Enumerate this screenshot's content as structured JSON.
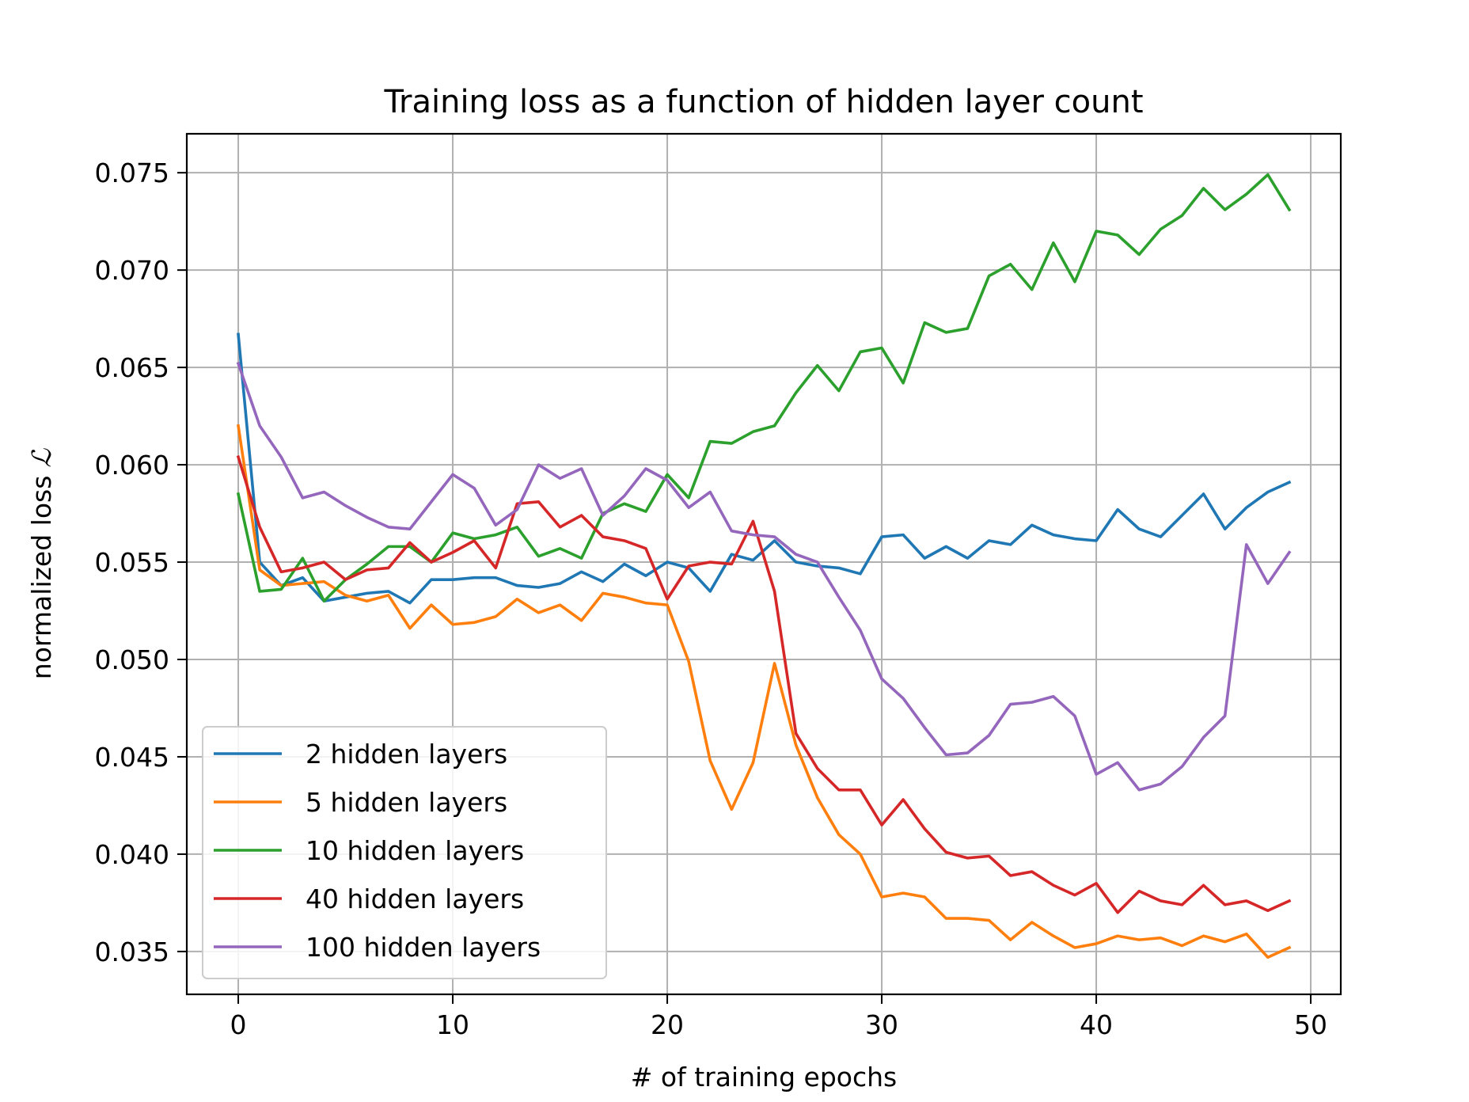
{
  "chart_data": {
    "type": "line",
    "title": "Training loss as a function of hidden layer count",
    "xlabel": "# of training epochs",
    "ylabel": "normalized loss",
    "ylabel_symbol": "ℒ",
    "xlim": [
      -2.4,
      51.4
    ],
    "ylim": [
      0.0328,
      0.077
    ],
    "xticks": [
      0,
      10,
      20,
      30,
      40,
      50
    ],
    "xtick_labels": [
      "0",
      "10",
      "20",
      "30",
      "40",
      "50"
    ],
    "yticks": [
      0.035,
      0.04,
      0.045,
      0.05,
      0.055,
      0.06,
      0.065,
      0.07,
      0.075
    ],
    "ytick_labels": [
      "0.035",
      "0.040",
      "0.045",
      "0.050",
      "0.055",
      "0.060",
      "0.065",
      "0.070",
      "0.075"
    ],
    "grid": true,
    "legend_position": "lower-left",
    "x": [
      0,
      1,
      2,
      3,
      4,
      5,
      6,
      7,
      8,
      9,
      10,
      11,
      12,
      13,
      14,
      15,
      16,
      17,
      18,
      19,
      20,
      21,
      22,
      23,
      24,
      25,
      26,
      27,
      28,
      29,
      30,
      31,
      32,
      33,
      34,
      35,
      36,
      37,
      38,
      39,
      40,
      41,
      42,
      43,
      44,
      45,
      46,
      47,
      48,
      49
    ],
    "series": [
      {
        "name": "2 hidden layers",
        "color": "#1f77b4",
        "values": [
          0.0667,
          0.055,
          0.0538,
          0.0542,
          0.053,
          0.0532,
          0.0534,
          0.0535,
          0.0529,
          0.0541,
          0.0541,
          0.0542,
          0.0542,
          0.0538,
          0.0537,
          0.0539,
          0.0545,
          0.054,
          0.0549,
          0.0543,
          0.055,
          0.0547,
          0.0535,
          0.0554,
          0.0551,
          0.0561,
          0.055,
          0.0548,
          0.0547,
          0.0544,
          0.0563,
          0.0564,
          0.0552,
          0.0558,
          0.0552,
          0.0561,
          0.0559,
          0.0569,
          0.0564,
          0.0562,
          0.0561,
          0.0577,
          0.0567,
          0.0563,
          0.0574,
          0.0585,
          0.0567,
          0.0578,
          0.0586,
          0.0591
        ]
      },
      {
        "name": "5 hidden layers",
        "color": "#ff7f0e",
        "values": [
          0.062,
          0.0546,
          0.0538,
          0.0539,
          0.054,
          0.0533,
          0.053,
          0.0533,
          0.0516,
          0.0528,
          0.0518,
          0.0519,
          0.0522,
          0.0531,
          0.0524,
          0.0528,
          0.052,
          0.0534,
          0.0532,
          0.0529,
          0.0528,
          0.0499,
          0.0448,
          0.0423,
          0.0447,
          0.0498,
          0.0456,
          0.0429,
          0.041,
          0.04,
          0.0378,
          0.038,
          0.0378,
          0.0367,
          0.0367,
          0.0366,
          0.0356,
          0.0365,
          0.0358,
          0.0352,
          0.0354,
          0.0358,
          0.0356,
          0.0357,
          0.0353,
          0.0358,
          0.0355,
          0.0359,
          0.0347,
          0.0352
        ]
      },
      {
        "name": "10 hidden layers",
        "color": "#2ca02c",
        "values": [
          0.0585,
          0.0535,
          0.0536,
          0.0552,
          0.053,
          0.0541,
          0.0549,
          0.0558,
          0.0558,
          0.055,
          0.0565,
          0.0562,
          0.0564,
          0.0568,
          0.0553,
          0.0557,
          0.0552,
          0.0575,
          0.058,
          0.0576,
          0.0595,
          0.0583,
          0.0612,
          0.0611,
          0.0617,
          0.062,
          0.0637,
          0.0651,
          0.0638,
          0.0658,
          0.066,
          0.0642,
          0.0673,
          0.0668,
          0.067,
          0.0697,
          0.0703,
          0.069,
          0.0714,
          0.0694,
          0.072,
          0.0718,
          0.0708,
          0.0721,
          0.0728,
          0.0742,
          0.0731,
          0.0739,
          0.0749,
          0.0731
        ]
      },
      {
        "name": "40 hidden layers",
        "color": "#d62728",
        "values": [
          0.0604,
          0.0568,
          0.0545,
          0.0547,
          0.055,
          0.0541,
          0.0546,
          0.0547,
          0.056,
          0.055,
          0.0555,
          0.0561,
          0.0547,
          0.058,
          0.0581,
          0.0568,
          0.0574,
          0.0563,
          0.0561,
          0.0557,
          0.0531,
          0.0548,
          0.055,
          0.0549,
          0.0571,
          0.0535,
          0.0462,
          0.0444,
          0.0433,
          0.0433,
          0.0415,
          0.0428,
          0.0413,
          0.0401,
          0.0398,
          0.0399,
          0.0389,
          0.0391,
          0.0384,
          0.0379,
          0.0385,
          0.037,
          0.0381,
          0.0376,
          0.0374,
          0.0384,
          0.0374,
          0.0376,
          0.0371,
          0.0376
        ]
      },
      {
        "name": "100 hidden layers",
        "color": "#9467bd",
        "values": [
          0.0652,
          0.062,
          0.0604,
          0.0583,
          0.0586,
          0.0579,
          0.0573,
          0.0568,
          0.0567,
          0.0581,
          0.0595,
          0.0588,
          0.0569,
          0.0577,
          0.06,
          0.0593,
          0.0598,
          0.0574,
          0.0584,
          0.0598,
          0.0592,
          0.0578,
          0.0586,
          0.0566,
          0.0564,
          0.0563,
          0.0554,
          0.055,
          0.0532,
          0.0515,
          0.049,
          0.048,
          0.0465,
          0.0451,
          0.0452,
          0.0461,
          0.0477,
          0.0478,
          0.0481,
          0.0471,
          0.0441,
          0.0447,
          0.0433,
          0.0436,
          0.0445,
          0.046,
          0.0471,
          0.0559,
          0.0539,
          0.0555
        ]
      }
    ]
  }
}
